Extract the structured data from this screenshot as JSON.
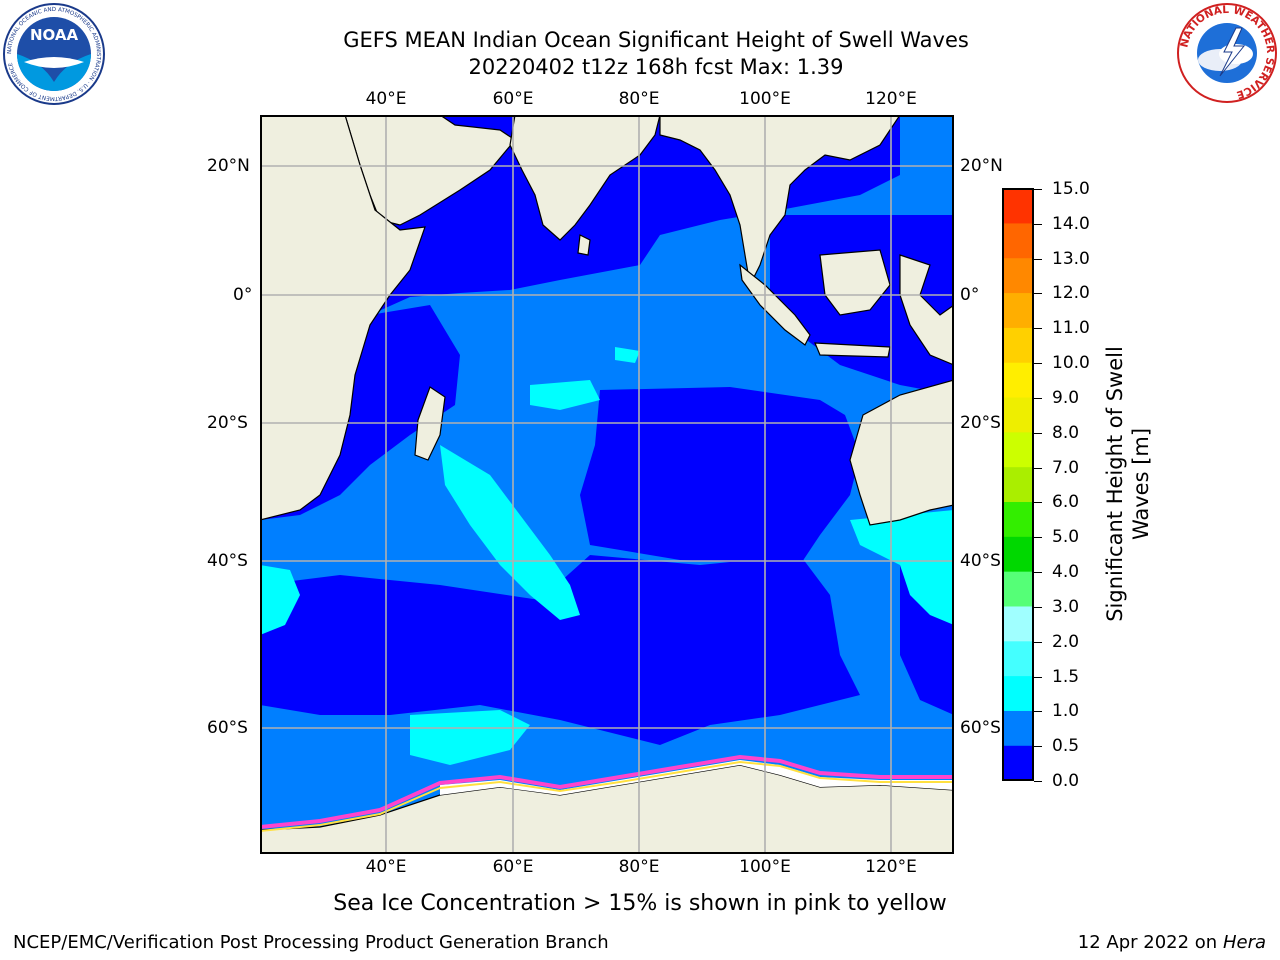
{
  "header": {
    "title_line1": "GEFS MEAN Indian Ocean Significant Height of Swell Waves",
    "title_line2": "20220402 t12z 168h fcst   Max: 1.39"
  },
  "map": {
    "lon_labels": [
      "40°E",
      "60°E",
      "80°E",
      "100°E",
      "120°E"
    ],
    "lat_labels_left": [
      "20°N",
      "0°",
      "20°S",
      "40°S",
      "60°S"
    ],
    "lat_labels_right": [
      "20°N",
      "0°",
      "20°S",
      "40°S",
      "60°S"
    ],
    "colors": {
      "land": "#efefdf",
      "ocean_low": "#0000ff",
      "ocean_mid": "#007fff",
      "ocean_high": "#00ffff",
      "ice_pink": "#ff44cc",
      "ice_yellow": "#ffe040",
      "gridline": "#b0b0b0"
    }
  },
  "colorbar": {
    "ticks": [
      "15.0",
      "14.0",
      "13.0",
      "12.0",
      "11.0",
      "10.0",
      "9.0",
      "8.0",
      "7.0",
      "6.0",
      "5.0",
      "4.0",
      "3.0",
      "2.0",
      "1.5",
      "1.0",
      "0.5",
      "0.0"
    ],
    "colors": [
      "#0000ff",
      "#007fff",
      "#00ffff",
      "#44ffff",
      "#a0ffff",
      "#55ff77",
      "#00d800",
      "#33ee00",
      "#aaee00",
      "#ccff00",
      "#eeee00",
      "#ffee00",
      "#ffd000",
      "#ffae00",
      "#ff8800",
      "#ff6600",
      "#ff3300",
      "#ff0000"
    ],
    "label_line1": "Significant Height of Swell",
    "label_line2": "Waves [m]"
  },
  "ice_note": "Sea Ice Concentration > 15% is shown in pink to yellow",
  "footer": {
    "left": "NCEP/EMC/Verification Post Processing Product Generation Branch",
    "date": "12 Apr 2022 on ",
    "host": "Hera"
  },
  "logos": {
    "noaa_text": "NOAA",
    "noaa_ring_text": "NATIONAL OCEANIC AND ATMOSPHERIC ADMINISTRATION · U.S. DEPARTMENT OF COMMERCE",
    "nws_ring_text": "NATIONAL WEATHER SERVICE"
  }
}
